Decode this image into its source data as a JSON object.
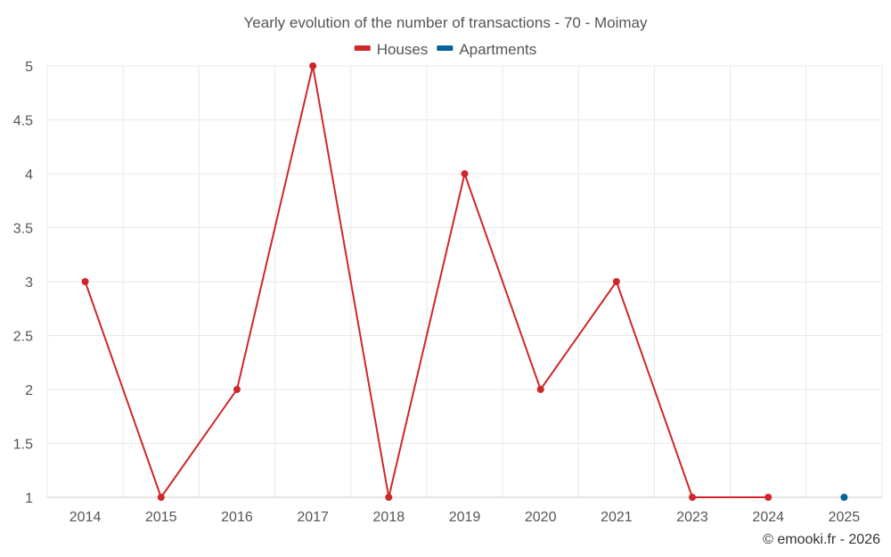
{
  "chart_data": {
    "type": "line",
    "title": "Yearly evolution of the number of transactions - 70 - Moimay",
    "xlabel": "",
    "ylabel": "",
    "categories": [
      "2014",
      "2015",
      "2016",
      "2017",
      "2018",
      "2019",
      "2020",
      "2021",
      "2023",
      "2024",
      "2025"
    ],
    "y_ticks": [
      "1",
      "1.5",
      "2",
      "2.5",
      "3",
      "3.5",
      "4",
      "4.5",
      "5"
    ],
    "ylim": [
      1,
      5
    ],
    "grid": true,
    "legend_position": "top-center",
    "series": [
      {
        "name": "Houses",
        "color": "#d0262a",
        "values": [
          3,
          1,
          2,
          5,
          1,
          4,
          2,
          3,
          1,
          1,
          null
        ]
      },
      {
        "name": "Apartments",
        "color": "#03649a",
        "values": [
          null,
          null,
          null,
          null,
          null,
          null,
          null,
          null,
          null,
          null,
          1
        ]
      }
    ]
  },
  "credit": "© emooki.fr - 2026"
}
